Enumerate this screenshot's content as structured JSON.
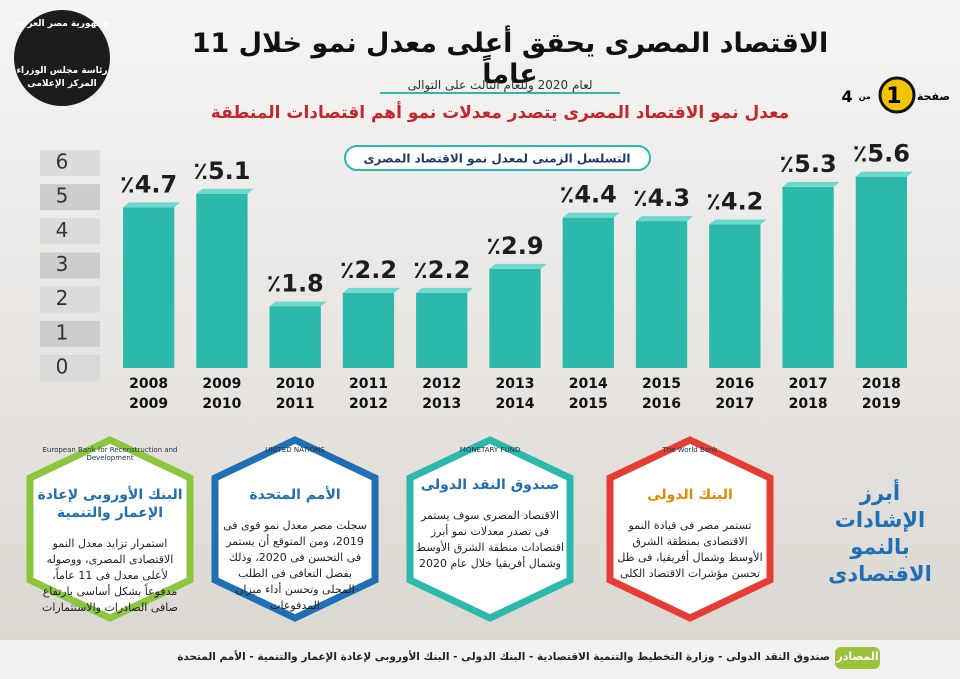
{
  "header": {
    "logo": [
      "جمهورية مصر العربية",
      "رئاسة مجلس الوزراء",
      "المركز الإعلامى"
    ],
    "title": "الاقتصاد المصرى يحقق أعلى معدل نمو خلال 11 عاماً",
    "subtitle": "لعام 2020 وللعام الثالث على التوالى",
    "headline": "معدل نمو الاقتصاد المصرى يتصدر معدلات نمو أهم اقتصادات المنطقة",
    "page": {
      "label": "صفحة",
      "number": "1",
      "of": "من",
      "total": "4"
    }
  },
  "chart_data": {
    "type": "bar",
    "title": "التسلسل الزمنى لمعدل نمو الاقتصاد المصرى",
    "categories": [
      [
        "2008",
        "2009"
      ],
      [
        "2009",
        "2010"
      ],
      [
        "2010",
        "2011"
      ],
      [
        "2011",
        "2012"
      ],
      [
        "2012",
        "2013"
      ],
      [
        "2013",
        "2014"
      ],
      [
        "2014",
        "2015"
      ],
      [
        "2015",
        "2016"
      ],
      [
        "2016",
        "2017"
      ],
      [
        "2017",
        "2018"
      ],
      [
        "2018",
        "2019"
      ]
    ],
    "values": [
      4.7,
      5.1,
      1.8,
      2.2,
      2.2,
      2.9,
      4.4,
      4.3,
      4.2,
      5.3,
      5.6
    ],
    "value_labels": [
      "٪4.7",
      "٪5.1",
      "٪1.8",
      "٪2.2",
      "٪2.2",
      "٪2.9",
      "٪4.4",
      "٪4.3",
      "٪4.2",
      "٪5.3",
      "٪5.6"
    ],
    "color": "#2cb8aa",
    "ylim": [
      0,
      6
    ],
    "yticks": [
      0,
      1,
      2,
      3,
      4,
      5,
      6
    ]
  },
  "cards": [
    {
      "logo": "European Bank for Reconstruction and Development",
      "title": "البنك الأوروبى لإعادة الإعمار والتنمية",
      "body": "استمرار تزايد معدل النمو الاقتصادى المصرى، ووصوله لأعلى معدل فى 11 عاماً، مدفوعاً بشكل أساسى بارتفاع صافى الصادرات والاستثمارات"
    },
    {
      "logo": "UNITED NATIONS",
      "title": "الأمم المتحدة",
      "body": "سجلت مصر معدل نمو قوى فى 2019، ومن المتوقع أن يستمر فى التحسن فى 2020، وذلك بفضل التعافى فى الطلب المحلى وتحسن أداء ميزان المدفوعات"
    },
    {
      "logo": "MONETARY FUND",
      "title": "صندوق النقد الدولى",
      "body": "الاقتصاد المصرى سوف يستمر فى تصدر معدلات نمو أبرز اقتصادات منطقة الشرق الأوسط وشمال أفريقيا خلال عام 2020"
    },
    {
      "logo": "The World Bank",
      "title": "البنك الدولى",
      "body": "تستمر مصر فى قيادة النمو الاقتصادى بمنطقة الشرق الأوسط وشمال أفريقيا، فى ظل تحسن مؤشرات الاقتصاد الكلى"
    }
  ],
  "side_title": "أبرز الإشادات بالنمو الاقتصادى",
  "footer": {
    "label": "المصادر",
    "text": "صندوق النقد الدولى - وزارة التخطيط والتنمية الاقتصادية - البنك الدولى - البنك الأوروبى لإعادة الإعمار والتنمية - الأمم المتحدة"
  }
}
